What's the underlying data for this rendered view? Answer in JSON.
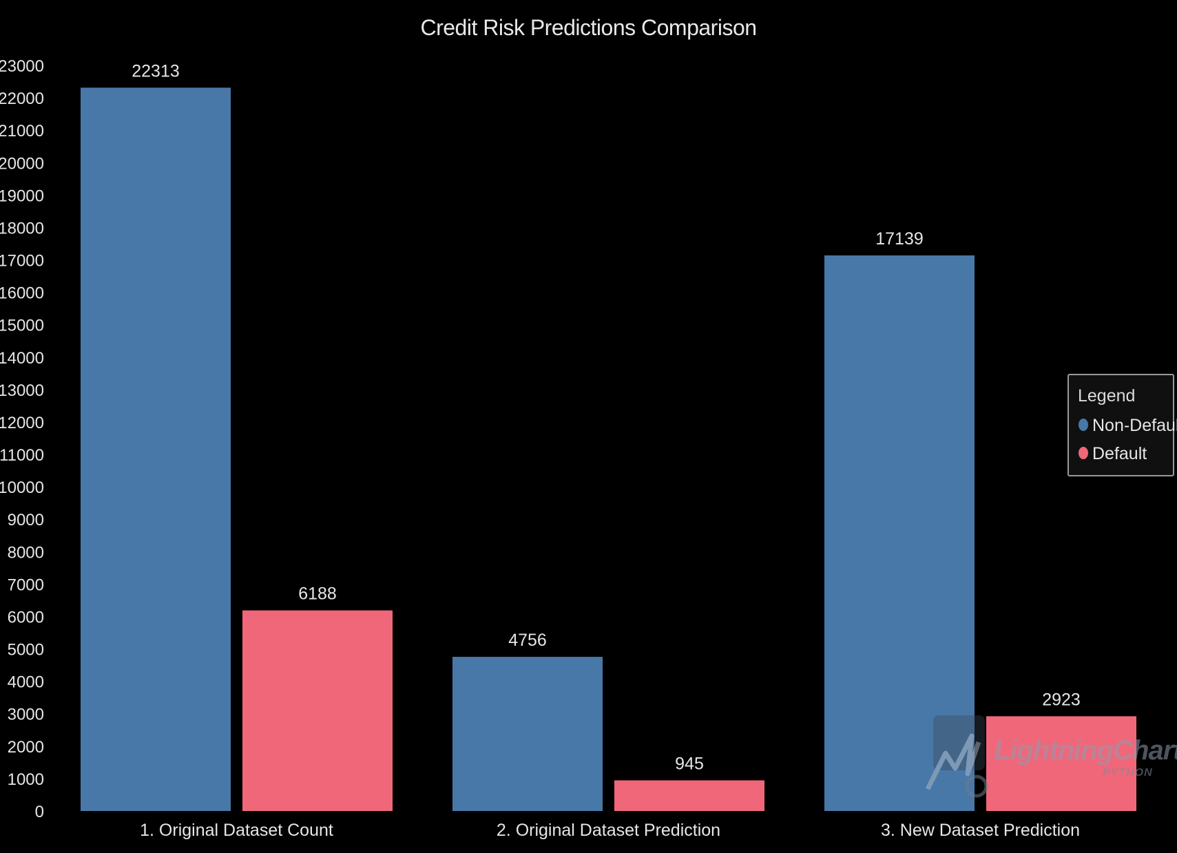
{
  "chart_data": {
    "type": "bar",
    "title": "Credit Risk Predictions Comparison",
    "categories": [
      "1. Original Dataset Count",
      "2. Original Dataset Prediction",
      "3. New Dataset Prediction"
    ],
    "series": [
      {
        "name": "Non-Default",
        "color": "#4878a8",
        "values": [
          22313,
          4756,
          17139
        ]
      },
      {
        "name": "Default",
        "color": "#f0677a",
        "values": [
          6188,
          945,
          2923
        ]
      }
    ],
    "ylim": [
      0,
      23000
    ],
    "ytick_step": 1000,
    "grid": false,
    "data_labels": true,
    "legend": {
      "title": "Legend",
      "placement": "right"
    }
  },
  "watermark": {
    "text": "LightningChart",
    "sub": "PYTHON",
    "icon": "lightning-logo-icon"
  }
}
